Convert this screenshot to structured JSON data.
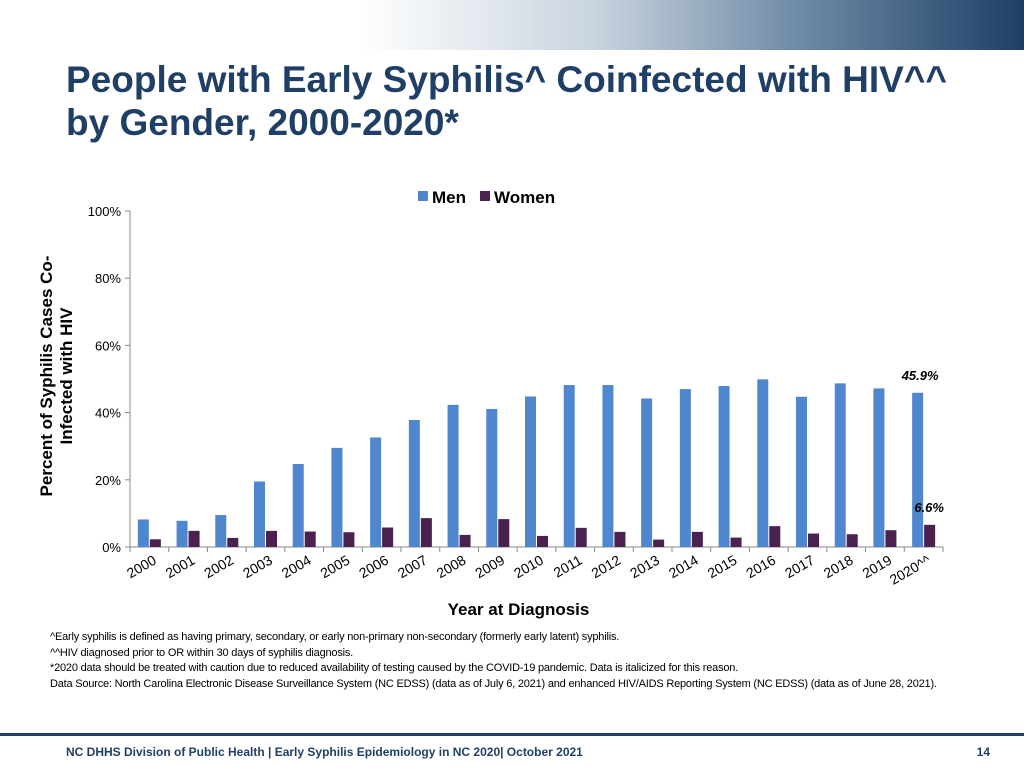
{
  "slide": {
    "title": "People with Early Syphilis^ Coinfected with HIV^^ by Gender, 2000-2020*",
    "notes": [
      "^Early syphilis is defined as having primary, secondary, or early non-primary non-secondary (formerly early latent) syphilis.",
      "^^HIV diagnosed prior to OR within 30 days of syphilis diagnosis.",
      "*2020 data should be treated with caution due to reduced availability of testing caused by the COVID-19 pandemic. Data is italicized for this reason.",
      "Data Source: North Carolina Electronic Disease Surveillance System (NC EDSS)  (data as of July 6, 2021) and enhanced HIV/AIDS  Reporting System (NC EDSS)  (data as of June 28, 2021)."
    ],
    "footer": "NC DHHS Division of Public Health | Early Syphilis Epidemiology in NC 2020| October 2021",
    "page_number": "14",
    "colors": {
      "title": "#1f3f66",
      "men": "#4f87cf",
      "women": "#4b2150"
    }
  },
  "chart_data": {
    "type": "bar",
    "xlabel": "Year at Diagnosis",
    "ylabel": "Percent  of Syphilis Cases Co-Infected with HIV",
    "ylim": [
      0,
      100
    ],
    "yticks": [
      "0%",
      "20%",
      "40%",
      "60%",
      "80%",
      "100%"
    ],
    "legend_position": "top",
    "categories": [
      "2000",
      "2001",
      "2002",
      "2003",
      "2004",
      "2005",
      "2006",
      "2007",
      "2008",
      "2009",
      "2010",
      "2011",
      "2012",
      "2013",
      "2014",
      "2015",
      "2016",
      "2017",
      "2018",
      "2019",
      "2020^^"
    ],
    "series": [
      {
        "name": "Men",
        "color": "#4f87cf",
        "values": [
          8.2,
          7.8,
          9.5,
          19.5,
          24.7,
          29.5,
          32.6,
          37.8,
          42.3,
          41.1,
          44.8,
          48.2,
          48.2,
          44.2,
          47.0,
          47.9,
          49.9,
          44.7,
          48.7,
          47.2,
          45.9
        ]
      },
      {
        "name": "Women",
        "color": "#4b2150",
        "values": [
          2.3,
          4.8,
          2.7,
          4.8,
          4.6,
          4.4,
          5.8,
          8.6,
          3.6,
          8.3,
          3.3,
          5.7,
          4.5,
          2.2,
          4.5,
          2.8,
          6.2,
          4.0,
          3.8,
          5.0,
          6.6
        ]
      }
    ],
    "annotations": [
      {
        "series": "Men",
        "category": "2020^^",
        "text": "45.9%"
      },
      {
        "series": "Women",
        "category": "2020^^",
        "text": "6.6%"
      }
    ]
  }
}
